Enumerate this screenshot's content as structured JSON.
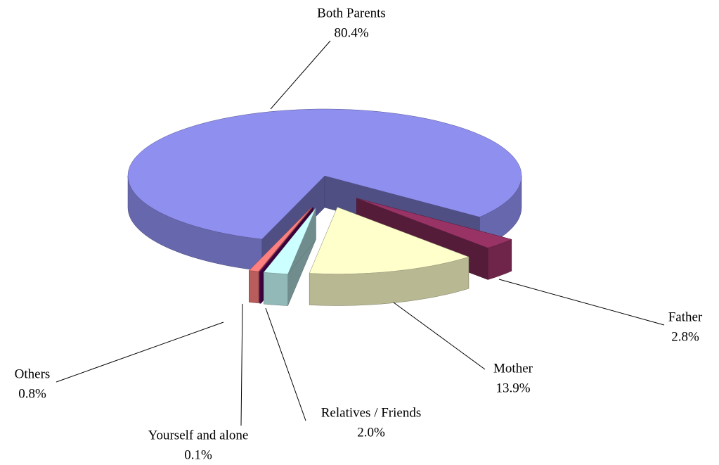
{
  "chart_data": {
    "type": "pie3d",
    "categories": [
      "Both Parents",
      "Father",
      "Mother",
      "Relatives / Friends",
      "Yourself and alone",
      "Others"
    ],
    "values": [
      80.4,
      2.8,
      13.9,
      2.0,
      0.1,
      0.8
    ],
    "value_labels": [
      "80.4%",
      "2.8%",
      "13.9%",
      "2.0%",
      "0.1%",
      "0.8%"
    ],
    "colors": [
      "#8f8ff0",
      "#993366",
      "#ffffcc",
      "#ccffff",
      "#660066",
      "#ff8080"
    ]
  }
}
